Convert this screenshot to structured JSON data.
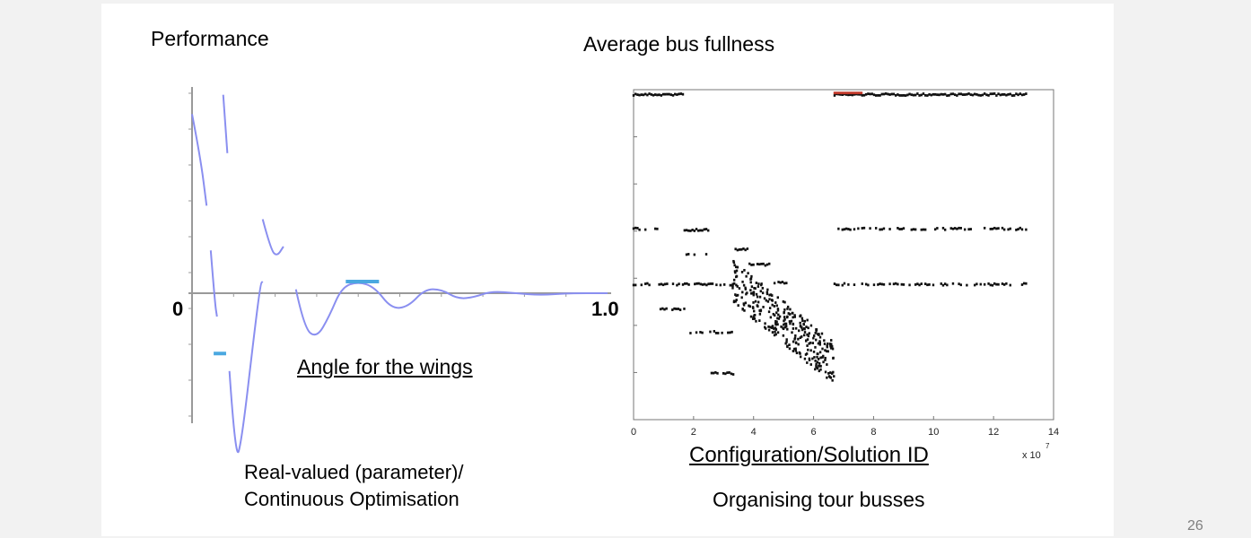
{
  "slide": {
    "left_title": "Performance",
    "right_title": "Average bus fullness",
    "left_zero_label": "0",
    "left_one_label": "1.0",
    "left_xlabel": "Angle for the wings",
    "right_xlabel": "Configuration/Solution ID",
    "left_caption_line1": "Real-valued (parameter)/",
    "left_caption_line2": "Continuous Optimisation",
    "right_caption": "Organising tour busses",
    "page_number": "26"
  },
  "colors": {
    "curve": "#8a8ff0",
    "highlight": "#4aa8e0",
    "scatter": "#111111",
    "best": "#c0392b",
    "axis": "#999999"
  },
  "chart_data": [
    {
      "type": "line",
      "title": "Performance",
      "xlabel": "Angle for the wings",
      "xlim": [
        0,
        1.0
      ],
      "ylim": [
        -1.0,
        1.0
      ],
      "grid": false,
      "series": [
        {
          "segments": [
            [
              [
                0.0,
                0.92
              ],
              [
                0.02,
                0.7
              ],
              [
                0.035,
                0.45
              ]
            ],
            [
              [
                0.075,
                1.02
              ],
              [
                0.085,
                0.72
              ]
            ],
            [
              [
                0.045,
                0.22
              ],
              [
                0.055,
                -0.05
              ],
              [
                0.06,
                -0.12
              ]
            ],
            [
              [
                0.09,
                -0.4
              ],
              [
                0.105,
                -0.87
              ],
              [
                0.12,
                -0.75
              ],
              [
                0.15,
                -0.2
              ],
              [
                0.165,
                0.05
              ],
              [
                0.17,
                0.06
              ]
            ],
            [
              [
                0.17,
                0.38
              ],
              [
                0.19,
                0.22
              ],
              [
                0.205,
                0.19
              ],
              [
                0.22,
                0.24
              ]
            ],
            [
              [
                0.25,
                0.02
              ],
              [
                0.27,
                -0.18
              ],
              [
                0.3,
                -0.23
              ],
              [
                0.33,
                -0.12
              ],
              [
                0.36,
                0.03
              ],
              [
                0.4,
                0.06
              ],
              [
                0.44,
                0.03
              ],
              [
                0.48,
                -0.08
              ],
              [
                0.52,
                -0.07
              ],
              [
                0.56,
                0.02
              ],
              [
                0.6,
                0.02
              ],
              [
                0.64,
                -0.03
              ],
              [
                0.68,
                -0.02
              ],
              [
                0.72,
                0.01
              ],
              [
                0.78,
                0.0
              ],
              [
                0.84,
                -0.01
              ],
              [
                0.9,
                0.0
              ],
              [
                1.0,
                0.0
              ]
            ]
          ]
        }
      ],
      "highlights": [
        {
          "x_start": 0.37,
          "x_end": 0.45,
          "y": 0.06
        },
        {
          "x_start": 0.052,
          "x_end": 0.082,
          "y": -0.31
        }
      ]
    },
    {
      "type": "scatter",
      "title": "Average bus fullness",
      "xlabel": "Configuration/Solution ID",
      "x_multiplier_label": "x 10",
      "x_multiplier_exponent": "7",
      "xlim": [
        0,
        14
      ],
      "ylim": [
        0,
        1.0
      ],
      "xticks": [
        0,
        2,
        4,
        6,
        8,
        10,
        12,
        14
      ],
      "grid": false,
      "clusters": [
        {
          "x_start": 0.0,
          "x_end": 1.7,
          "y": 0.985,
          "density": 1.0
        },
        {
          "x_start": 6.7,
          "x_end": 13.1,
          "y": 0.985,
          "density": 1.0
        },
        {
          "x_start": 0.0,
          "x_end": 0.8,
          "y": 0.578,
          "density": 0.5
        },
        {
          "x_start": 1.7,
          "x_end": 2.5,
          "y": 0.575,
          "density": 1.0
        },
        {
          "x_start": 6.7,
          "x_end": 13.1,
          "y": 0.578,
          "density": 0.6
        },
        {
          "x_start": 1.7,
          "x_end": 2.5,
          "y": 0.5,
          "density": 0.7
        },
        {
          "x_start": 0.0,
          "x_end": 3.6,
          "y": 0.41,
          "density": 0.6
        },
        {
          "x_start": 6.7,
          "x_end": 13.1,
          "y": 0.41,
          "density": 0.6
        },
        {
          "x_start": 0.9,
          "x_end": 1.7,
          "y": 0.335,
          "density": 0.7
        },
        {
          "x_start": 1.7,
          "x_end": 3.3,
          "y": 0.265,
          "density": 0.6
        },
        {
          "x_start": 2.6,
          "x_end": 3.4,
          "y": 0.14,
          "density": 0.7
        },
        {
          "x_start": 3.4,
          "x_end": 3.8,
          "y": 0.515,
          "density": 0.9
        },
        {
          "x_start": 3.8,
          "x_end": 4.6,
          "y": 0.47,
          "density": 0.8
        },
        {
          "x_start": 4.7,
          "x_end": 5.1,
          "y": 0.415,
          "density": 0.9
        }
      ],
      "diagonal_band": {
        "x_start": 3.3,
        "x_end": 6.7,
        "y_start": 0.42,
        "y_end": 0.17
      },
      "best_points": {
        "x_start": 6.7,
        "x_end": 7.6,
        "y": 0.99
      }
    }
  ]
}
